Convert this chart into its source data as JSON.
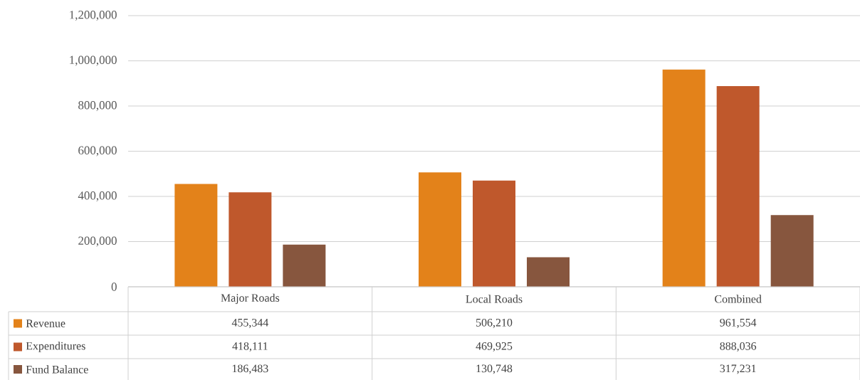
{
  "chart_data": {
    "type": "bar",
    "categories": [
      "Major Roads",
      "Local Roads",
      "Combined"
    ],
    "series": [
      {
        "name": "Revenue",
        "color": "#e3821a",
        "values": [
          455344,
          506210,
          961554
        ],
        "value_labels": [
          "455,344",
          "506,210",
          "961,554"
        ]
      },
      {
        "name": "Expenditures",
        "color": "#bf582c",
        "values": [
          418111,
          469925,
          888036
        ],
        "value_labels": [
          "418,111",
          "469,925",
          "888,036"
        ]
      },
      {
        "name": "Fund Balance",
        "color": "#87563e",
        "values": [
          186483,
          130748,
          317231
        ],
        "value_labels": [
          "186,483",
          "130,748",
          "317,231"
        ]
      }
    ],
    "ylim": [
      0,
      1200000
    ],
    "yticks": [
      0,
      {
        "value": 200000,
        "label": "200,000"
      },
      {
        "value": 400000,
        "label": "400,000"
      },
      {
        "value": 600000,
        "label": "600,000"
      },
      {
        "value": 800000,
        "label": "800,000"
      },
      {
        "value": 1000000,
        "label": "1,000,000"
      },
      {
        "value": 1200000,
        "label": "1,200,000"
      }
    ],
    "grid": "y",
    "legend": "bottom"
  }
}
